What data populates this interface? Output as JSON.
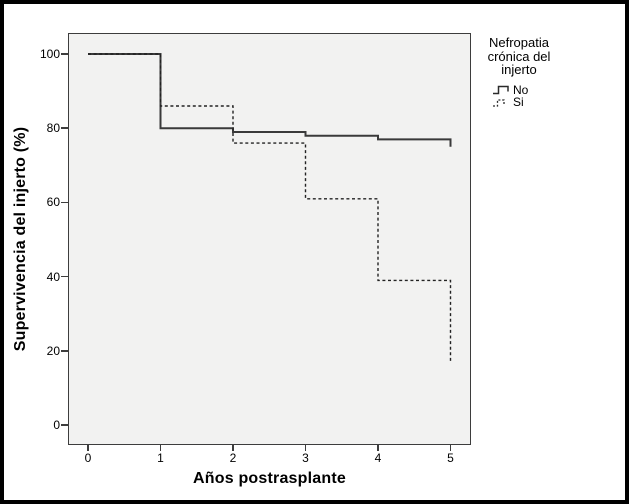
{
  "chart_data": {
    "type": "line",
    "subtype": "kaplan-meier-step-survival",
    "title": "",
    "xlabel": "Años postrasplante",
    "ylabel": "Supervivencia del injerto (%)",
    "xlim": [
      0,
      5
    ],
    "ylim": [
      0,
      100
    ],
    "xticks": [
      0,
      1,
      2,
      3,
      4,
      5
    ],
    "yticks": [
      0,
      20,
      40,
      60,
      80,
      100
    ],
    "grid": false,
    "legend": {
      "title": "Nefropatia crónica del injerto",
      "position": "right-of-plot",
      "entries": [
        {
          "label": "No",
          "line_style": "solid"
        },
        {
          "label": "Si",
          "line_style": "dashed"
        }
      ]
    },
    "series": [
      {
        "name": "No",
        "line_style": "solid",
        "color": "#3a3a3a",
        "points": [
          [
            0,
            100
          ],
          [
            1,
            100
          ],
          [
            1,
            80
          ],
          [
            2,
            80
          ],
          [
            2,
            79
          ],
          [
            3,
            79
          ],
          [
            3,
            78
          ],
          [
            4,
            78
          ],
          [
            4,
            77
          ],
          [
            5,
            77
          ],
          [
            5,
            75
          ]
        ]
      },
      {
        "name": "Si",
        "line_style": "dashed",
        "color": "#232323",
        "points": [
          [
            0,
            100
          ],
          [
            1,
            100
          ],
          [
            1,
            86
          ],
          [
            2,
            86
          ],
          [
            2,
            76
          ],
          [
            3,
            76
          ],
          [
            3,
            61
          ],
          [
            4,
            61
          ],
          [
            4,
            39
          ],
          [
            5,
            39
          ],
          [
            5,
            17
          ]
        ]
      }
    ],
    "colors": {
      "plot_background": "#f2f2f1",
      "axis": "#3d3d3d",
      "frame_border": "#000000"
    }
  }
}
